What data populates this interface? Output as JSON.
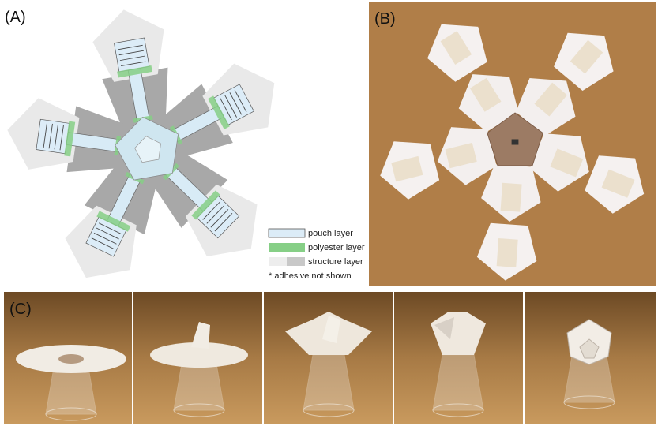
{
  "panels": {
    "a": {
      "label": "(A)",
      "legend": [
        "pouch layer",
        "polyester layer",
        "structure layer",
        "* adhesive not shown"
      ]
    },
    "b": {
      "label": "(B)"
    },
    "c": {
      "label": "(C)"
    }
  }
}
